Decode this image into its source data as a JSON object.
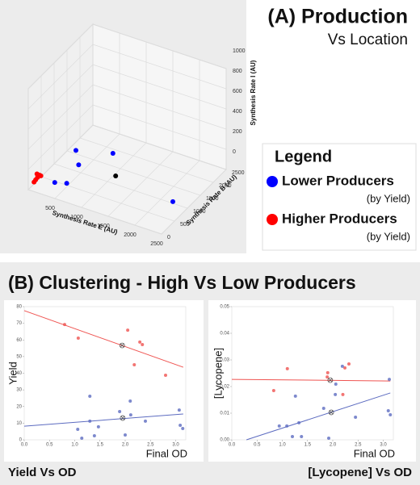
{
  "section_title": "(B) Clustering - High Vs Low Producers",
  "chart_data": [
    {
      "type": "scatter3d",
      "title": "(A) Production",
      "subtitle": "Vs Location",
      "xlabel": "Synthesis Rate E (AU)",
      "ylabel": "Synthesis Rate B (AU)",
      "zlabel": "Synthesis Rate I (AU)",
      "xlim": [
        0,
        2500
      ],
      "ylim": [
        0,
        2500
      ],
      "zlim": [
        0,
        1000
      ],
      "xticks": [
        500,
        1000,
        1500,
        2000,
        2500
      ],
      "yticks": [
        0,
        500,
        1000,
        1500,
        2000,
        2500
      ],
      "zticks": [
        0,
        200,
        400,
        600,
        800,
        1000
      ],
      "legend": {
        "title": "Legend"
      },
      "series": [
        {
          "name": "Lower Producers",
          "note": "(by Yield)",
          "color": "#0000ff",
          "points": [
            [
              700,
              400,
              410
            ],
            [
              800,
              300,
              310
            ],
            [
              1200,
              800,
              366
            ],
            [
              400,
              200,
              90
            ],
            [
              600,
              250,
              105
            ],
            [
              2300,
              850,
              68
            ]
          ]
        },
        {
          "name": "Higher Producers",
          "note": "(by Yield)",
          "color": "#ff0000",
          "points": [
            [
              100,
              150,
              100
            ],
            [
              80,
              120,
              80
            ],
            [
              120,
              180,
              120
            ],
            [
              60,
              100,
              60
            ],
            [
              140,
              200,
              110
            ],
            [
              100,
              130,
              140
            ]
          ]
        }
      ],
      "center": {
        "color": "#000000",
        "point": [
          1300,
          700,
          186
        ]
      }
    },
    {
      "type": "scatter",
      "title": "Yield Vs OD",
      "xlabel": "Final OD",
      "ylabel": "Yield",
      "xlim": [
        0,
        3.2
      ],
      "ylim": [
        0,
        80
      ],
      "xticks": [
        {
          "value": 0,
          "label": "0.0"
        },
        0.5,
        {
          "value": 1,
          "label": "1.0"
        },
        1.5,
        {
          "value": 2,
          "label": "2.0"
        },
        2.5,
        {
          "value": 3,
          "label": "3.0"
        }
      ],
      "yticks": [
        0,
        10,
        20,
        30,
        40,
        50,
        60,
        70,
        80
      ],
      "series": [
        {
          "color": "#ef5350",
          "x": [
            0.8,
            1.07,
            2.05,
            2.29,
            2.34,
            2.18,
            2.8
          ],
          "values": [
            69.3,
            61.1,
            65.9,
            58.7,
            57.2,
            45.1,
            38.8
          ]
        },
        {
          "color": "#5c6bc0",
          "x": [
            1.3,
            1.3,
            1.06,
            1.47,
            1.39,
            1.89,
            2.1,
            2.11,
            2.0,
            1.14,
            2.4,
            3.07,
            3.09,
            3.14
          ],
          "values": [
            26.2,
            11.2,
            6.3,
            7.8,
            2.4,
            17,
            23.3,
            15,
            2.9,
            1,
            11.2,
            17.9,
            8.7,
            6.8
          ]
        }
      ],
      "lines": [
        {
          "color": "#ef5350",
          "x": [
            0,
            3.15
          ],
          "values": [
            77.6,
            43.6
          ]
        },
        {
          "color": "#5c6bc0",
          "x": [
            0,
            3.15
          ],
          "values": [
            8.2,
            15.5
          ]
        }
      ],
      "centers": {
        "x": [
          1.94,
          1.95
        ],
        "values": [
          56.7,
          13.1
        ]
      }
    },
    {
      "type": "scatter",
      "title": "[Lycopene] Vs OD",
      "xlabel": "Final OD",
      "ylabel": "[Lycopene]",
      "xlim": [
        0,
        3.2
      ],
      "ylim": [
        0,
        0.05
      ],
      "xticks": [
        {
          "value": 0,
          "label": "0.0"
        },
        0.5,
        {
          "value": 1,
          "label": "1.0"
        },
        1.5,
        {
          "value": 2,
          "label": "2.0"
        },
        2.5,
        {
          "value": 3,
          "label": "3.0"
        }
      ],
      "yticks": [
        {
          "value": 0,
          "label": "0.00"
        },
        0.01,
        0.02,
        0.03,
        0.04,
        0.05
      ],
      "series": [
        {
          "color": "#ef5350",
          "x": [
            0.83,
            1.1,
            1.89,
            1.9,
            2.2,
            2.32,
            2.24
          ],
          "values": [
            0.0185,
            0.0267,
            0.0236,
            0.0252,
            0.017,
            0.0285,
            0.027
          ]
        },
        {
          "color": "#5c6bc0",
          "x": [
            1.26,
            0.94,
            1.09,
            1.33,
            1.2,
            1.38,
            1.82,
            2.05,
            2.06,
            2.19,
            2.45,
            1.92,
            3.1,
            3.14,
            3.12
          ],
          "values": [
            0.0164,
            0.0052,
            0.0052,
            0.0064,
            0.0012,
            0.0012,
            0.0118,
            0.017,
            0.0209,
            0.0276,
            0.0085,
            0.0006,
            0.0109,
            0.0094,
            0.0227
          ]
        }
      ],
      "lines": [
        {
          "color": "#ef5350",
          "x": [
            0,
            3.14
          ],
          "values": [
            0.0227,
            0.0221
          ]
        },
        {
          "color": "#5c6bc0",
          "x": [
            0.29,
            3.14
          ],
          "values": [
            0,
            0.0176
          ]
        }
      ],
      "centers": {
        "x": [
          1.95,
          1.97
        ],
        "values": [
          0.0224,
          0.0103
        ]
      }
    }
  ]
}
